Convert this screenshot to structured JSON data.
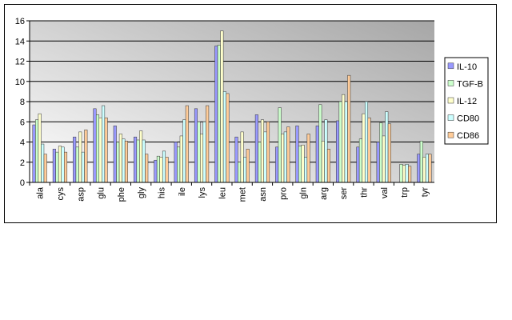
{
  "chart_data": {
    "type": "bar",
    "categories": [
      "ala",
      "cys",
      "asp",
      "glu",
      "phe",
      "gly",
      "his",
      "ile",
      "lys",
      "leu",
      "met",
      "asn",
      "pro",
      "gln",
      "arg",
      "ser",
      "thr",
      "val",
      "trp",
      "tyr"
    ],
    "series": [
      {
        "name": "IL-10",
        "color": "#9999ff",
        "values": [
          5.7,
          3.3,
          4.5,
          7.3,
          5.6,
          4.5,
          2.2,
          4.0,
          7.3,
          13.5,
          4.5,
          6.7,
          3.5,
          5.6,
          5.6,
          6.1,
          3.5,
          4.0,
          0,
          2.8
        ]
      },
      {
        "name": "TGF-B",
        "color": "#ccffcc",
        "values": [
          6.2,
          3.0,
          3.5,
          6.7,
          4.0,
          4.2,
          2.6,
          3.5,
          6.0,
          13.6,
          2.0,
          4.0,
          7.4,
          3.6,
          7.7,
          8.0,
          4.3,
          5.9,
          1.8,
          4.1
        ]
      },
      {
        "name": "IL-12",
        "color": "#ffffcc",
        "values": [
          6.8,
          3.6,
          5.0,
          6.4,
          4.8,
          5.1,
          2.5,
          4.6,
          4.8,
          15.0,
          5.0,
          6.2,
          4.8,
          3.7,
          4.1,
          8.7,
          6.8,
          4.6,
          1.7,
          2.5
        ]
      },
      {
        "name": "CD80",
        "color": "#ccffff",
        "values": [
          3.8,
          3.5,
          3.0,
          7.6,
          4.3,
          4.2,
          3.1,
          6.2,
          6.0,
          9.0,
          2.5,
          5.0,
          5.0,
          2.5,
          6.2,
          8.0,
          8.0,
          7.0,
          1.8,
          2.8
        ]
      },
      {
        "name": "CD86",
        "color": "#ffcc99",
        "values": [
          2.8,
          3.0,
          5.2,
          6.4,
          4.1,
          2.8,
          2.5,
          7.6,
          7.6,
          8.8,
          3.3,
          6.0,
          5.5,
          4.8,
          3.3,
          10.6,
          6.4,
          5.8,
          1.6,
          2.8
        ]
      }
    ],
    "ylim": [
      0,
      16
    ],
    "yticks": [
      0,
      2,
      4,
      6,
      8,
      10,
      12,
      14,
      16
    ],
    "grid": true,
    "legend": "right"
  }
}
